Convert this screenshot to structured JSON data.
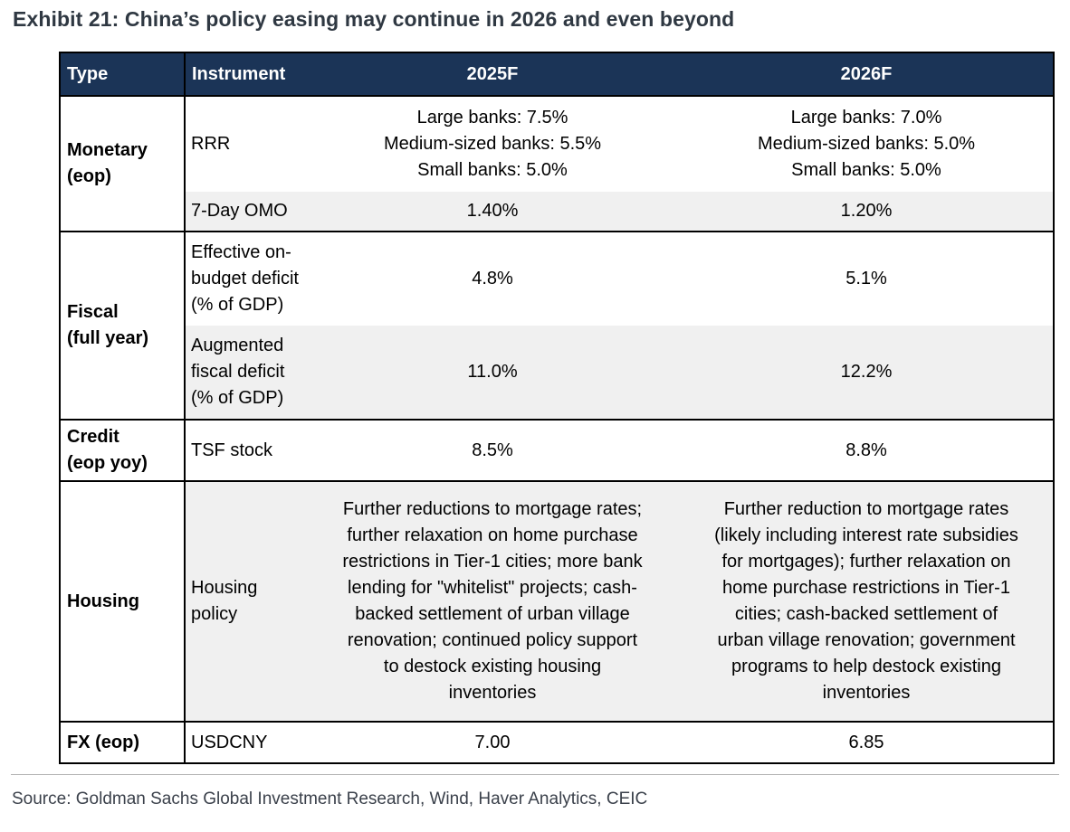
{
  "title": "Exhibit 21: China’s policy easing may continue in 2026 and even beyond",
  "source": "Source: Goldman Sachs Global Investment Research, Wind, Haver Analytics, CEIC",
  "colors": {
    "header_bg": "#1b3457",
    "row_shade": "#f0f0f0",
    "border": "#000000",
    "title_text": "#2f3842"
  },
  "table": {
    "headers": {
      "type": "Type",
      "instrument": "Instrument",
      "y2025": "2025F",
      "y2026": "2026F"
    },
    "groups": [
      {
        "type": "Monetary\n(eop)",
        "rows": [
          {
            "instrument": "RRR",
            "y2025": "Large banks: 7.5%\nMedium-sized banks: 5.5%\nSmall banks: 5.0%",
            "y2026": "Large banks: 7.0%\nMedium-sized banks: 5.0%\nSmall banks: 5.0%"
          },
          {
            "instrument": "7-Day OMO",
            "y2025": "1.40%",
            "y2026": "1.20%"
          }
        ]
      },
      {
        "type": "Fiscal\n(full year)",
        "rows": [
          {
            "instrument": "Effective on-\nbudget deficit\n(% of GDP)",
            "y2025": "4.8%",
            "y2026": "5.1%"
          },
          {
            "instrument": "Augmented\nfiscal deficit\n(% of GDP)",
            "y2025": "11.0%",
            "y2026": "12.2%"
          }
        ]
      },
      {
        "type": "Credit\n(eop yoy)",
        "rows": [
          {
            "instrument": "TSF stock",
            "y2025": "8.5%",
            "y2026": "8.8%"
          }
        ]
      },
      {
        "type": "Housing",
        "rows": [
          {
            "instrument": "Housing\npolicy",
            "y2025": "Further reductions to mortgage rates;\nfurther relaxation on home purchase\nrestrictions in Tier-1 cities; more bank\nlending for \"whitelist\" projects; cash-\nbacked settlement of urban village\nrenovation; continued policy support\nto destock existing housing\ninventories",
            "y2026": "Further reduction to mortgage rates\n(likely including interest rate subsidies\nfor mortgages); further relaxation on\nhome purchase restrictions in Tier-1\ncities; cash-backed settlement of\nurban village renovation; government\nprograms to help destock existing\ninventories"
          }
        ]
      },
      {
        "type": "FX (eop)",
        "rows": [
          {
            "instrument": "USDCNY",
            "y2025": "7.00",
            "y2026": "6.85"
          }
        ]
      }
    ]
  }
}
